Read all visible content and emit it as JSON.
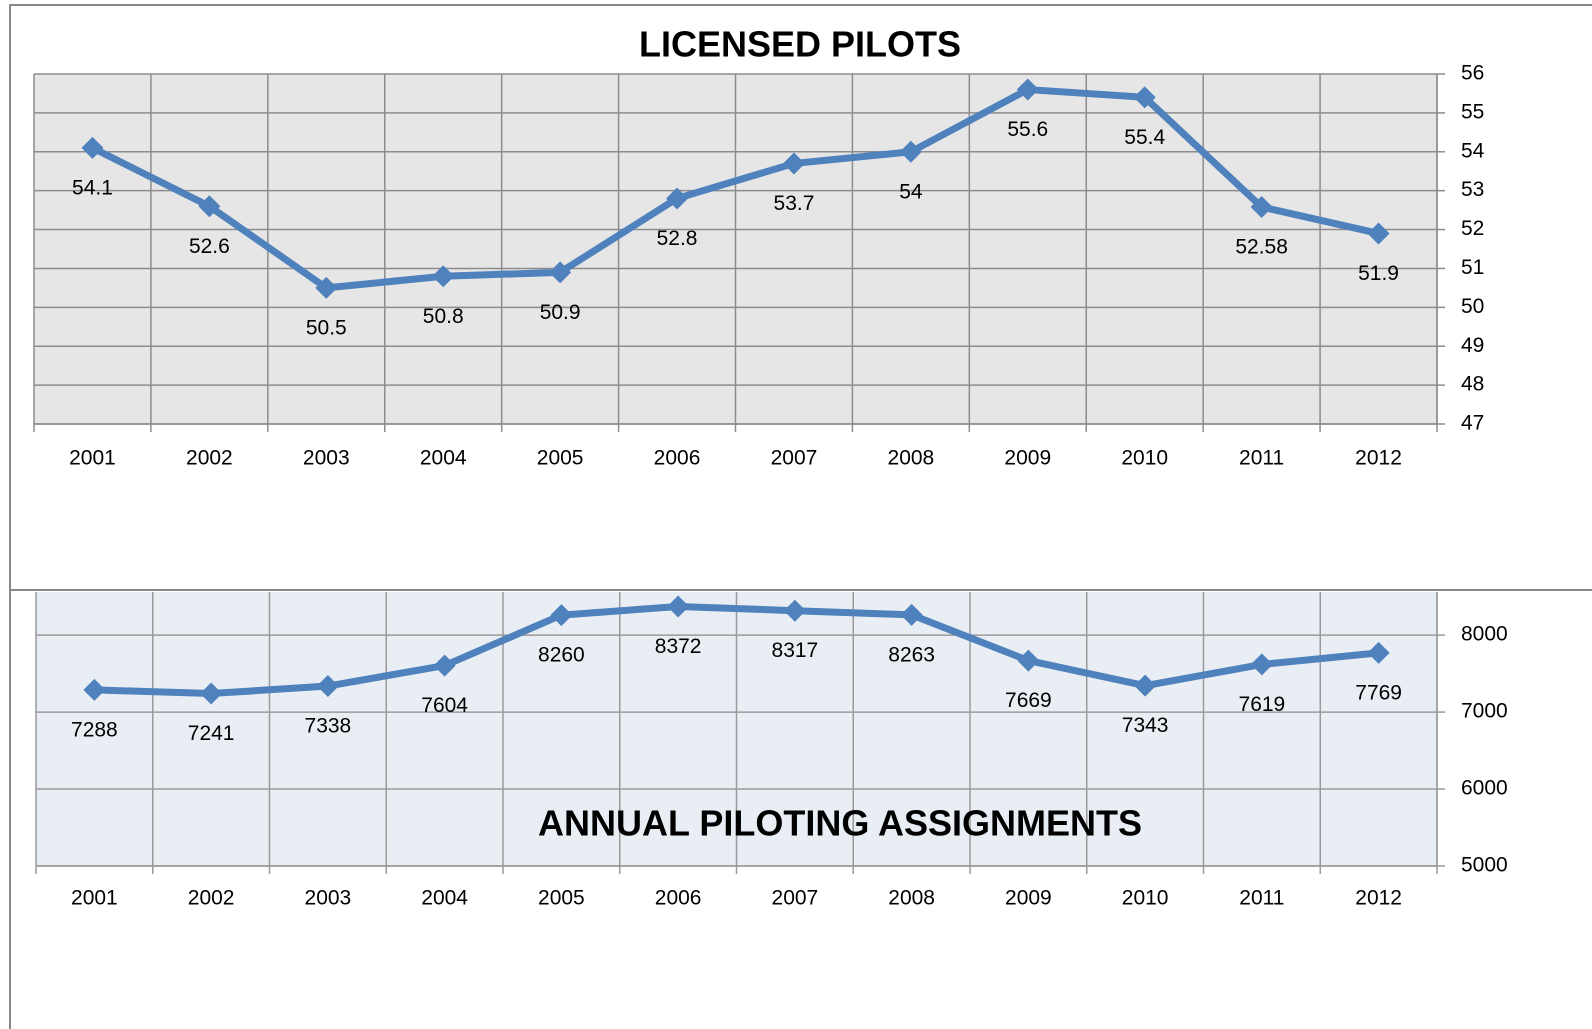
{
  "chart_data": [
    {
      "type": "line",
      "title": "LICENSED PILOTS",
      "categories": [
        "2001",
        "2002",
        "2003",
        "2004",
        "2005",
        "2006",
        "2007",
        "2008",
        "2009",
        "2010",
        "2011",
        "2012"
      ],
      "values": [
        54.1,
        52.6,
        50.5,
        50.8,
        50.9,
        52.8,
        53.7,
        54,
        55.6,
        55.4,
        52.58,
        51.9
      ],
      "color": "#4f81bd",
      "ylim": [
        47,
        56
      ],
      "yticks": [
        47,
        48,
        49,
        50,
        51,
        52,
        53,
        54,
        55,
        56
      ],
      "grid": true
    },
    {
      "type": "line",
      "title": "ANNUAL PILOTING ASSIGNMENTS",
      "categories": [
        "2001",
        "2002",
        "2003",
        "2004",
        "2005",
        "2006",
        "2007",
        "2008",
        "2009",
        "2010",
        "2011",
        "2012"
      ],
      "values": [
        7288,
        7241,
        7338,
        7604,
        8260,
        8372,
        8317,
        8263,
        7669,
        7343,
        7619,
        7769
      ],
      "color": "#4f81bd",
      "ylim": [
        5000,
        8560
      ],
      "yticks": [
        5000,
        6000,
        7000,
        8000
      ],
      "grid": true
    }
  ]
}
